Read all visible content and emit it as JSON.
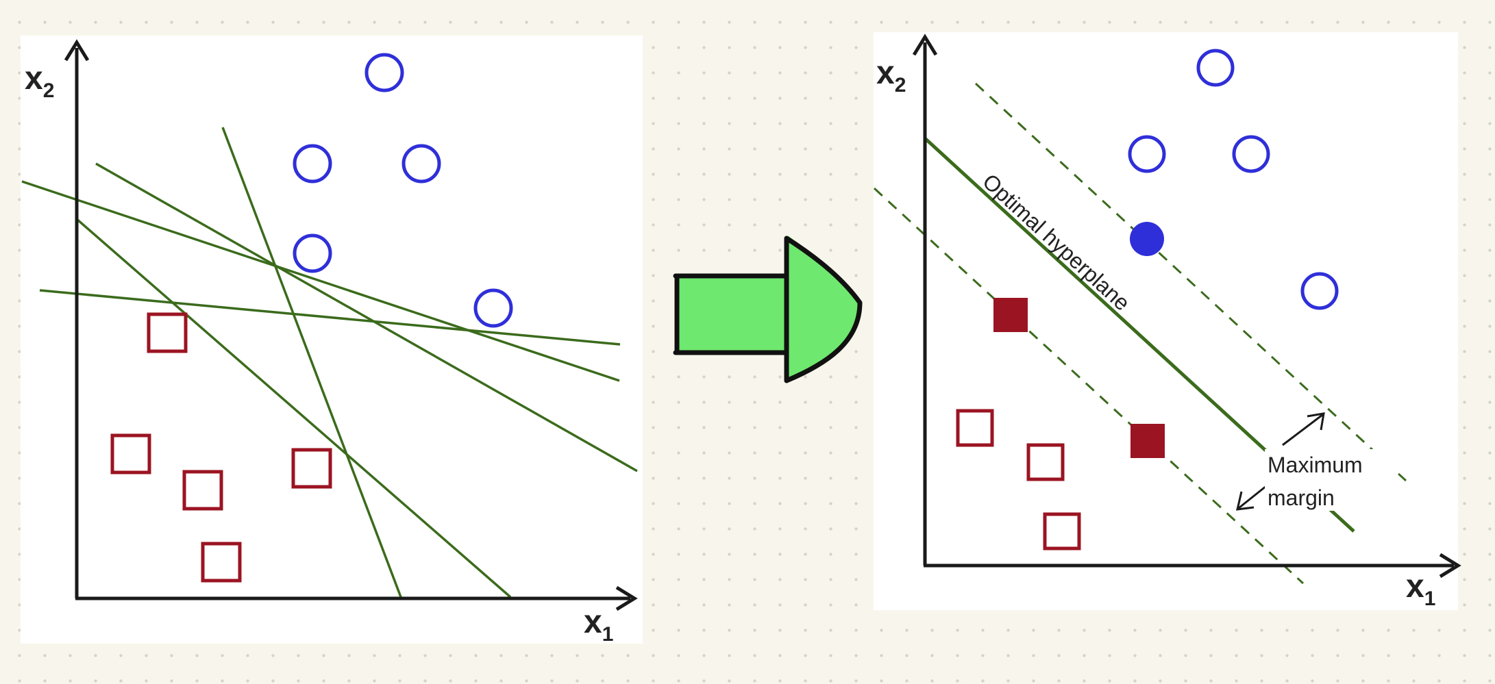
{
  "colors": {
    "axis": "#1a1a1a",
    "line": "#3b6b1c",
    "circle": "#2f2fd9",
    "square": "#9b1422",
    "arrow_fill": "#6ee86e",
    "arrow_stroke": "#111111"
  },
  "left_panel": {
    "x_axis": {
      "letter": "x",
      "sub": "1"
    },
    "y_axis": {
      "letter": "x",
      "sub": "2"
    },
    "circle_count": 5,
    "square_count": 5,
    "candidate_line_count": 5
  },
  "right_panel": {
    "x_axis": {
      "letter": "x",
      "sub": "1"
    },
    "y_axis": {
      "letter": "x",
      "sub": "2"
    },
    "hyperplane_label": "Optimal hyperplane",
    "margin_label_line1": "Maximum",
    "margin_label_line2": "margin",
    "support_vectors": {
      "circles": 1,
      "squares": 2
    }
  },
  "arrow": {
    "icon": "right-arrow-icon"
  }
}
